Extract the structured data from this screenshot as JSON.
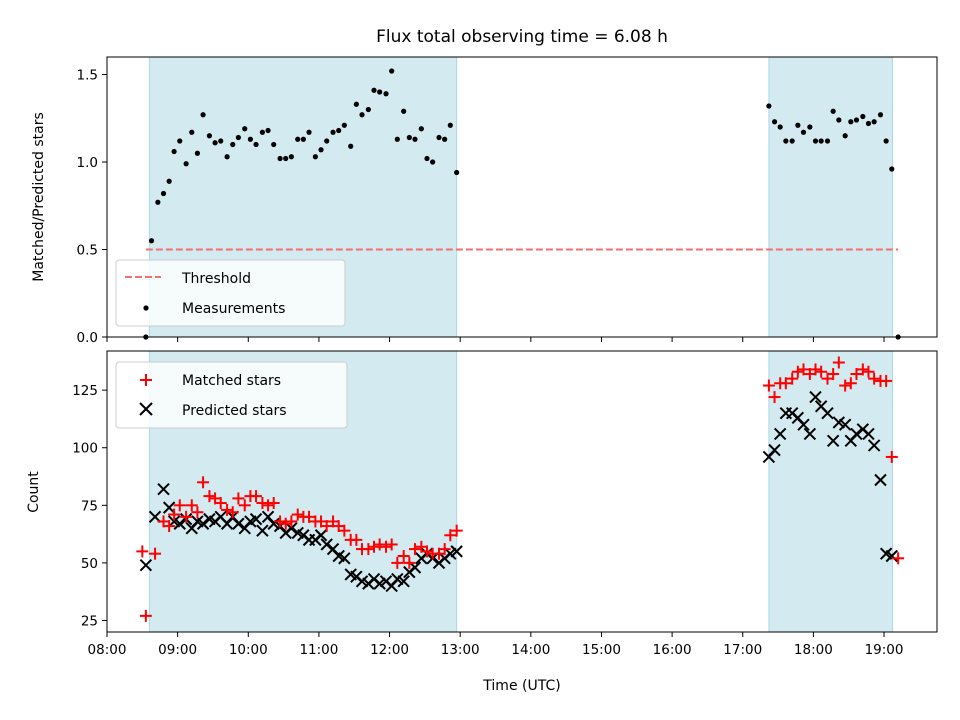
{
  "chart_data": {
    "type": "scatter",
    "title": "Flux total observing time = 6.08 h",
    "xlabel": "Time (UTC)",
    "x_ticks": [
      "08:00",
      "09:00",
      "10:00",
      "11:00",
      "12:00",
      "13:00",
      "14:00",
      "15:00",
      "16:00",
      "17:00",
      "18:00",
      "19:00"
    ],
    "x_tick_hours": [
      8,
      9,
      10,
      11,
      12,
      13,
      14,
      15,
      16,
      17,
      18,
      19
    ],
    "xlim": [
      8.0,
      19.75
    ],
    "observing_windows": [
      [
        8.6,
        12.95
      ],
      [
        17.37,
        19.12
      ]
    ],
    "colors": {
      "window": "#d3eaf1",
      "window_edge": "#add8e6",
      "threshold": "#f07070",
      "measurement": "#000000",
      "matched": "#ff0000",
      "predicted": "#000000"
    },
    "top": {
      "ylabel": "Matched/Predicted stars",
      "ylim": [
        0,
        1.6
      ],
      "y_ticks": [
        0.0,
        0.5,
        1.0,
        1.5
      ],
      "y_tick_labels": [
        "0.0",
        "0.5",
        "1.0",
        "1.5"
      ],
      "threshold": {
        "value": 0.5,
        "x_range": [
          8.55,
          19.2
        ]
      },
      "legend": {
        "threshold_label": "Threshold",
        "measurements_label": "Measurements"
      },
      "measurements": {
        "t": [
          8.55,
          8.63,
          8.72,
          8.8,
          8.88,
          8.95,
          9.03,
          9.12,
          9.2,
          9.28,
          9.36,
          9.45,
          9.53,
          9.61,
          9.7,
          9.78,
          9.86,
          9.95,
          10.03,
          10.11,
          10.2,
          10.28,
          10.36,
          10.45,
          10.53,
          10.61,
          10.7,
          10.78,
          10.86,
          10.95,
          11.03,
          11.11,
          11.2,
          11.28,
          11.36,
          11.45,
          11.53,
          11.61,
          11.7,
          11.78,
          11.86,
          11.95,
          12.03,
          12.11,
          12.2,
          12.28,
          12.36,
          12.45,
          12.53,
          12.61,
          12.7,
          12.78,
          12.86,
          12.95,
          17.37,
          17.45,
          17.53,
          17.61,
          17.7,
          17.78,
          17.86,
          17.95,
          18.03,
          18.11,
          18.2,
          18.28,
          18.36,
          18.45,
          18.53,
          18.61,
          18.7,
          18.78,
          18.86,
          18.95,
          19.03,
          19.11,
          19.2
        ],
        "ratio": [
          0.0,
          0.55,
          0.77,
          0.82,
          0.89,
          1.06,
          1.12,
          0.99,
          1.17,
          1.05,
          1.27,
          1.15,
          1.11,
          1.12,
          1.03,
          1.1,
          1.14,
          1.19,
          1.13,
          1.1,
          1.17,
          1.18,
          1.1,
          1.02,
          1.02,
          1.03,
          1.13,
          1.13,
          1.17,
          1.03,
          1.07,
          1.12,
          1.17,
          1.18,
          1.21,
          1.09,
          1.33,
          1.27,
          1.3,
          1.41,
          1.4,
          1.39,
          1.52,
          1.13,
          1.29,
          1.14,
          1.13,
          1.19,
          1.02,
          1.0,
          1.14,
          1.13,
          1.21,
          0.94,
          1.32,
          1.23,
          1.2,
          1.12,
          1.12,
          1.21,
          1.17,
          1.2,
          1.12,
          1.12,
          1.12,
          1.29,
          1.24,
          1.15,
          1.23,
          1.24,
          1.26,
          1.22,
          1.23,
          1.27,
          1.12,
          0.96,
          0.0
        ]
      }
    },
    "bottom": {
      "ylabel": "Count",
      "ylim": [
        20,
        142
      ],
      "y_ticks": [
        25,
        50,
        75,
        100,
        125
      ],
      "y_tick_labels": [
        "25",
        "50",
        "75",
        "100",
        "125"
      ],
      "legend": {
        "matched_label": "Matched stars",
        "predicted_label": "Predicted stars"
      },
      "matched": {
        "t": [
          8.5,
          8.55,
          8.68,
          8.8,
          8.88,
          8.95,
          9.03,
          9.12,
          9.2,
          9.28,
          9.36,
          9.45,
          9.53,
          9.61,
          9.7,
          9.78,
          9.86,
          9.95,
          10.03,
          10.11,
          10.2,
          10.28,
          10.36,
          10.45,
          10.53,
          10.61,
          10.7,
          10.78,
          10.86,
          10.95,
          11.03,
          11.11,
          11.2,
          11.28,
          11.36,
          11.45,
          11.53,
          11.61,
          11.7,
          11.78,
          11.86,
          11.95,
          12.03,
          12.11,
          12.2,
          12.28,
          12.36,
          12.45,
          12.53,
          12.61,
          12.7,
          12.78,
          12.86,
          12.95,
          17.37,
          17.45,
          17.53,
          17.61,
          17.7,
          17.78,
          17.86,
          17.95,
          18.03,
          18.11,
          18.2,
          18.28,
          18.36,
          18.45,
          18.53,
          18.61,
          18.7,
          18.78,
          18.86,
          18.95,
          19.03,
          19.11,
          19.2
        ],
        "values": [
          55,
          27,
          54,
          68,
          66,
          71,
          75,
          70,
          75,
          72,
          85,
          79,
          78,
          76,
          73,
          72,
          78,
          75,
          79,
          79,
          76,
          75,
          76,
          68,
          67,
          68,
          71,
          70,
          70,
          68,
          68,
          66,
          68,
          66,
          64,
          60,
          60,
          56,
          56,
          57,
          58,
          57,
          58,
          50,
          53,
          50,
          56,
          57,
          55,
          54,
          54,
          56,
          62,
          64,
          127,
          122,
          128,
          128,
          130,
          133,
          134,
          132,
          134,
          133,
          130,
          132,
          137,
          127,
          128,
          132,
          134,
          133,
          130,
          129,
          129,
          96,
          52
        ],
        "note": "x positions are approximate"
      },
      "predicted": {
        "t": [
          8.55,
          8.68,
          8.8,
          8.88,
          8.95,
          9.03,
          9.12,
          9.2,
          9.28,
          9.36,
          9.45,
          9.53,
          9.61,
          9.7,
          9.78,
          9.86,
          9.95,
          10.03,
          10.11,
          10.2,
          10.28,
          10.36,
          10.45,
          10.53,
          10.61,
          10.7,
          10.78,
          10.86,
          10.95,
          11.03,
          11.11,
          11.2,
          11.28,
          11.36,
          11.45,
          11.53,
          11.61,
          11.7,
          11.78,
          11.86,
          11.95,
          12.03,
          12.11,
          12.2,
          12.28,
          12.36,
          12.45,
          12.53,
          12.61,
          12.7,
          12.78,
          12.86,
          12.95,
          17.37,
          17.45,
          17.53,
          17.61,
          17.7,
          17.78,
          17.86,
          17.95,
          18.03,
          18.11,
          18.2,
          18.28,
          18.36,
          18.45,
          18.53,
          18.61,
          18.7,
          18.78,
          18.86,
          18.95,
          19.03,
          19.11
        ],
        "values": [
          49,
          70,
          82,
          74,
          68,
          67,
          69,
          65,
          68,
          67,
          69,
          68,
          70,
          67,
          70,
          67,
          65,
          68,
          69,
          64,
          70,
          67,
          66,
          63,
          65,
          63,
          62,
          60,
          60,
          62,
          58,
          56,
          53,
          52,
          45,
          44,
          42,
          41,
          43,
          41,
          42,
          40,
          43,
          42,
          46,
          48,
          52,
          54,
          52,
          50,
          52,
          54,
          55,
          96,
          99,
          106,
          115,
          115,
          113,
          110,
          106,
          122,
          118,
          115,
          103,
          111,
          110,
          103,
          106,
          108,
          106,
          101,
          86,
          54,
          53
        ]
      }
    }
  }
}
